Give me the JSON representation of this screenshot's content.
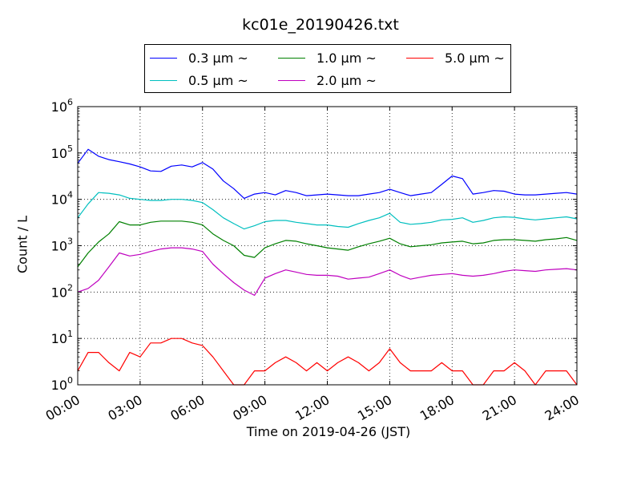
{
  "chart_data": {
    "type": "line",
    "title": "kc01e_20190426.txt",
    "xlabel": "Time on 2019-04-26 (JST)",
    "ylabel": "Count / L",
    "xlim": [
      "00:00",
      "24:00"
    ],
    "ylim": [
      1,
      1000000
    ],
    "yscale": "log",
    "grid": true,
    "legend_position": "top",
    "xticks": [
      "00:00",
      "03:00",
      "06:00",
      "09:00",
      "12:00",
      "15:00",
      "18:00",
      "21:00",
      "24:00"
    ],
    "yticks": [
      {
        "base": "10",
        "exp": "0"
      },
      {
        "base": "10",
        "exp": "1"
      },
      {
        "base": "10",
        "exp": "2"
      },
      {
        "base": "10",
        "exp": "3"
      },
      {
        "base": "10",
        "exp": "4"
      },
      {
        "base": "10",
        "exp": "5"
      },
      {
        "base": "10",
        "exp": "6"
      }
    ],
    "x": [
      "00:00",
      "00:30",
      "01:00",
      "01:30",
      "02:00",
      "02:30",
      "03:00",
      "03:30",
      "04:00",
      "04:30",
      "05:00",
      "05:30",
      "06:00",
      "06:30",
      "07:00",
      "07:30",
      "08:00",
      "08:30",
      "09:00",
      "09:30",
      "10:00",
      "10:30",
      "11:00",
      "11:30",
      "12:00",
      "12:30",
      "13:00",
      "13:30",
      "14:00",
      "14:30",
      "15:00",
      "15:30",
      "16:00",
      "16:30",
      "17:00",
      "17:30",
      "18:00",
      "18:30",
      "19:00",
      "19:30",
      "20:00",
      "20:30",
      "21:00",
      "21:30",
      "22:00",
      "22:30",
      "23:00",
      "23:30",
      "24:00"
    ],
    "series": [
      {
        "name": "0.3 μm ~",
        "color": "#0000ff",
        "values": [
          60000,
          120000,
          85000,
          72000,
          65000,
          58000,
          50000,
          41000,
          40000,
          52000,
          55000,
          50000,
          62000,
          45000,
          25000,
          17000,
          10500,
          13000,
          14000,
          12500,
          15500,
          14000,
          12000,
          12500,
          13000,
          12500,
          12000,
          12000,
          13000,
          14000,
          16500,
          14000,
          12000,
          13000,
          14000,
          21000,
          32000,
          28000,
          13000,
          14000,
          15500,
          15000,
          13000,
          12500,
          12500,
          13000,
          13500,
          14000,
          13000
        ]
      },
      {
        "name": "0.5 μm ~",
        "color": "#00bfbf",
        "values": [
          4000,
          8000,
          14000,
          13500,
          12500,
          10500,
          10000,
          9500,
          9500,
          10000,
          10000,
          9500,
          8500,
          6000,
          4000,
          3000,
          2300,
          2700,
          3300,
          3500,
          3500,
          3200,
          3000,
          2800,
          2800,
          2600,
          2500,
          3000,
          3500,
          4000,
          5000,
          3200,
          2900,
          3000,
          3200,
          3600,
          3700,
          4000,
          3200,
          3500,
          4000,
          4200,
          4100,
          3800,
          3600,
          3800,
          4000,
          4200,
          3800
        ]
      },
      {
        "name": "1.0 μm ~",
        "color": "#008000",
        "values": [
          350,
          700,
          1200,
          1800,
          3300,
          2800,
          2800,
          3200,
          3400,
          3400,
          3400,
          3200,
          2800,
          1800,
          1300,
          1000,
          620,
          560,
          900,
          1100,
          1300,
          1250,
          1100,
          1000,
          900,
          850,
          800,
          950,
          1100,
          1250,
          1450,
          1100,
          950,
          1000,
          1050,
          1150,
          1200,
          1250,
          1100,
          1150,
          1300,
          1350,
          1350,
          1300,
          1250,
          1350,
          1400,
          1500,
          1300
        ]
      },
      {
        "name": "2.0 μm ~",
        "color": "#bf00bf",
        "values": [
          100,
          120,
          180,
          350,
          700,
          600,
          650,
          750,
          850,
          900,
          900,
          850,
          750,
          400,
          250,
          160,
          110,
          85,
          200,
          250,
          300,
          270,
          240,
          230,
          230,
          220,
          190,
          200,
          210,
          250,
          300,
          230,
          190,
          210,
          230,
          240,
          250,
          230,
          220,
          230,
          250,
          280,
          300,
          290,
          280,
          300,
          310,
          320,
          300
        ]
      },
      {
        "name": "5.0 μm ~",
        "color": "#ff0000",
        "values": [
          2,
          5,
          5,
          3,
          2,
          5,
          4,
          8,
          8,
          10,
          10,
          8,
          7,
          4,
          2,
          1,
          1,
          2,
          2,
          3,
          4,
          3,
          2,
          3,
          2,
          3,
          4,
          3,
          2,
          3,
          6,
          3,
          2,
          2,
          2,
          3,
          2,
          2,
          1,
          1,
          2,
          2,
          3,
          2,
          1,
          2,
          2,
          2,
          1
        ]
      }
    ]
  }
}
